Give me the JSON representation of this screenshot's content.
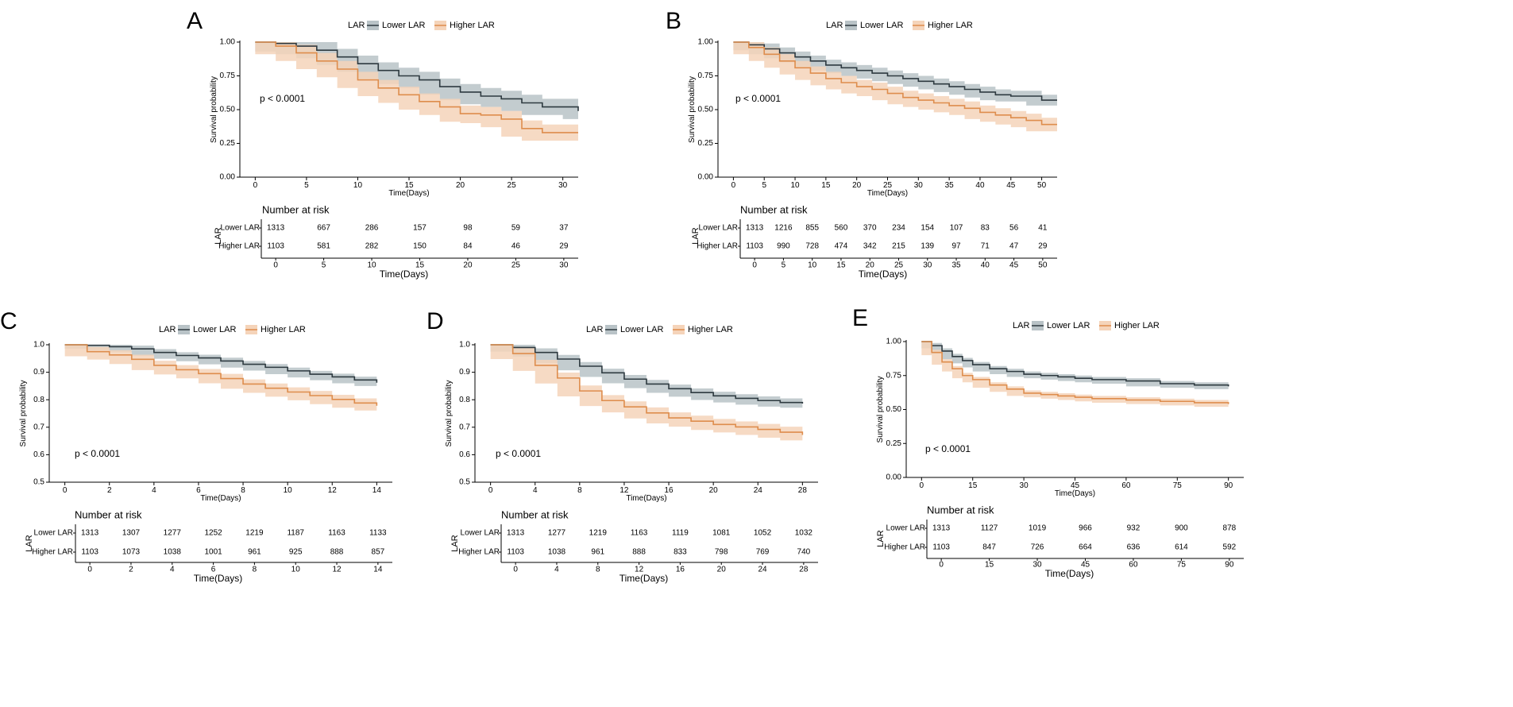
{
  "colors": {
    "lower": "#2e3a40",
    "lower_band": "#b9c3c7",
    "higher": "#de8d4d",
    "higher_band": "#f5d4ba",
    "axis": "#000000",
    "text": "#000000"
  },
  "chart_data": [
    {
      "type": "line",
      "panel_label": "A",
      "legend_title": "LAR",
      "legend": [
        "Lower LAR",
        "Higher LAR"
      ],
      "xlabel": "Time(Days)",
      "ylabel": "Survival probability",
      "xlim": [
        -1.5,
        31.5
      ],
      "ylim": [
        0,
        1
      ],
      "x_ticks": [
        0,
        5,
        10,
        15,
        20,
        25,
        30
      ],
      "y_ticks": [
        0,
        0.25,
        0.5,
        0.75,
        1
      ],
      "y_tick_labels": [
        "0.00",
        "0.25",
        "0.50",
        "0.75",
        "1.00"
      ],
      "p_value": "p < 0.0001",
      "series": [
        {
          "name": "Lower LAR",
          "x": [
            0,
            2,
            4,
            6,
            8,
            10,
            12,
            14,
            16,
            18,
            20,
            22,
            24,
            26,
            28,
            30,
            31.5
          ],
          "values": [
            1.0,
            0.99,
            0.97,
            0.94,
            0.89,
            0.84,
            0.79,
            0.75,
            0.72,
            0.67,
            0.63,
            0.6,
            0.58,
            0.55,
            0.52,
            0.52,
            0.49
          ],
          "band": 0.06
        },
        {
          "name": "Higher LAR",
          "x": [
            0,
            2,
            4,
            6,
            8,
            10,
            12,
            14,
            16,
            18,
            20,
            22,
            24,
            26,
            28,
            30,
            31.5
          ],
          "values": [
            1.0,
            0.97,
            0.92,
            0.86,
            0.8,
            0.72,
            0.66,
            0.61,
            0.56,
            0.52,
            0.47,
            0.46,
            0.43,
            0.36,
            0.33,
            0.33,
            0.33
          ],
          "band": 0.06
        }
      ],
      "risk_table": {
        "title": "Number at risk",
        "row_title": "LAR",
        "xlabel": "Time(Days)",
        "times": [
          0,
          5,
          10,
          15,
          20,
          25,
          30
        ],
        "rows": [
          {
            "label": "Lower LAR",
            "counts": [
              "1313",
              "667",
              "286",
              "157",
              "98",
              "59",
              "37"
            ]
          },
          {
            "label": "Higher LAR",
            "counts": [
              "1103",
              "581",
              "282",
              "150",
              "84",
              "46",
              "29"
            ]
          }
        ]
      }
    },
    {
      "type": "line",
      "panel_label": "B",
      "legend_title": "LAR",
      "legend": [
        "Lower LAR",
        "Higher LAR"
      ],
      "xlabel": "Time(Days)",
      "ylabel": "Survival probability",
      "xlim": [
        -2.5,
        52.5
      ],
      "ylim": [
        0,
        1
      ],
      "x_ticks": [
        0,
        5,
        10,
        15,
        20,
        25,
        30,
        35,
        40,
        45,
        50
      ],
      "y_ticks": [
        0,
        0.25,
        0.5,
        0.75,
        1
      ],
      "y_tick_labels": [
        "0.00",
        "0.25",
        "0.50",
        "0.75",
        "1.00"
      ],
      "p_value": "p < 0.0001",
      "series": [
        {
          "name": "Lower LAR",
          "x": [
            0,
            2.5,
            5,
            7.5,
            10,
            12.5,
            15,
            17.5,
            20,
            22.5,
            25,
            27.5,
            30,
            32.5,
            35,
            37.5,
            40,
            42.5,
            45,
            47.5,
            50,
            52.5
          ],
          "values": [
            1.0,
            0.98,
            0.95,
            0.92,
            0.89,
            0.86,
            0.83,
            0.81,
            0.79,
            0.77,
            0.75,
            0.73,
            0.71,
            0.69,
            0.67,
            0.65,
            0.63,
            0.61,
            0.6,
            0.6,
            0.57,
            0.57
          ],
          "band": 0.04
        },
        {
          "name": "Higher LAR",
          "x": [
            0,
            2.5,
            5,
            7.5,
            10,
            12.5,
            15,
            17.5,
            20,
            22.5,
            25,
            27.5,
            30,
            32.5,
            35,
            37.5,
            40,
            42.5,
            45,
            47.5,
            50,
            52.5
          ],
          "values": [
            1.0,
            0.96,
            0.91,
            0.86,
            0.81,
            0.77,
            0.73,
            0.7,
            0.67,
            0.65,
            0.62,
            0.59,
            0.57,
            0.55,
            0.53,
            0.51,
            0.48,
            0.46,
            0.44,
            0.42,
            0.39,
            0.39
          ],
          "band": 0.05
        }
      ],
      "risk_table": {
        "title": "Number at risk",
        "row_title": "LAR",
        "xlabel": "Time(Days)",
        "times": [
          0,
          5,
          10,
          15,
          20,
          25,
          30,
          35,
          40,
          45,
          50
        ],
        "rows": [
          {
            "label": "Lower LAR",
            "counts": [
              "1313",
              "1216",
              "855",
              "560",
              "370",
              "234",
              "154",
              "107",
              "83",
              "56",
              "41"
            ]
          },
          {
            "label": "Higher LAR",
            "counts": [
              "1103",
              "990",
              "728",
              "474",
              "342",
              "215",
              "139",
              "97",
              "71",
              "47",
              "29"
            ]
          }
        ]
      }
    },
    {
      "type": "line",
      "panel_label": "C",
      "legend_title": "LAR",
      "legend": [
        "Lower LAR",
        "Higher LAR"
      ],
      "xlabel": "Time(Days)",
      "ylabel": "Survival probability",
      "xlim": [
        -0.7,
        14.7
      ],
      "ylim": [
        0.5,
        1.0
      ],
      "x_ticks": [
        0,
        2,
        4,
        6,
        8,
        10,
        12,
        14
      ],
      "y_ticks": [
        0.5,
        0.6,
        0.7,
        0.8,
        0.9,
        1.0
      ],
      "y_tick_labels": [
        "0.5",
        "0.6",
        "0.7",
        "0.8",
        "0.9",
        "1.0"
      ],
      "p_value": "p < 0.0001",
      "series": [
        {
          "name": "Lower LAR",
          "x": [
            0,
            1,
            2,
            3,
            4,
            5,
            6,
            7,
            8,
            9,
            10,
            11,
            12,
            13,
            14
          ],
          "values": [
            1.0,
            0.998,
            0.993,
            0.985,
            0.972,
            0.961,
            0.952,
            0.941,
            0.929,
            0.918,
            0.905,
            0.893,
            0.883,
            0.872,
            0.862
          ],
          "band": 0.012
        },
        {
          "name": "Higher LAR",
          "x": [
            0,
            1,
            2,
            3,
            4,
            5,
            6,
            7,
            8,
            9,
            10,
            11,
            12,
            13,
            14
          ],
          "values": [
            1.0,
            0.975,
            0.963,
            0.947,
            0.925,
            0.909,
            0.895,
            0.877,
            0.857,
            0.842,
            0.828,
            0.815,
            0.801,
            0.788,
            0.778
          ],
          "band": 0.017
        }
      ],
      "risk_table": {
        "title": "Number at risk",
        "row_title": "LAR",
        "xlabel": "Time(Days)",
        "times": [
          0,
          2,
          4,
          6,
          8,
          10,
          12,
          14
        ],
        "rows": [
          {
            "label": "Lower LAR",
            "counts": [
              "1313",
              "1307",
              "1277",
              "1252",
              "1219",
              "1187",
              "1163",
              "1133"
            ]
          },
          {
            "label": "Higher LAR",
            "counts": [
              "1103",
              "1073",
              "1038",
              "1001",
              "961",
              "925",
              "888",
              "857"
            ]
          }
        ]
      }
    },
    {
      "type": "line",
      "panel_label": "D",
      "legend_title": "LAR",
      "legend": [
        "Lower LAR",
        "Higher LAR"
      ],
      "xlabel": "Time(Days)",
      "ylabel": "Survival probability",
      "xlim": [
        -1.4,
        29.4
      ],
      "ylim": [
        0.5,
        1.0
      ],
      "x_ticks": [
        0,
        4,
        8,
        12,
        16,
        20,
        24,
        28
      ],
      "y_ticks": [
        0.5,
        0.6,
        0.7,
        0.8,
        0.9,
        1.0
      ],
      "y_tick_labels": [
        "0.5",
        "0.6",
        "0.7",
        "0.8",
        "0.9",
        "1.0"
      ],
      "p_value": "p < 0.0001",
      "series": [
        {
          "name": "Lower LAR",
          "x": [
            0,
            2,
            4,
            6,
            8,
            10,
            12,
            14,
            16,
            18,
            20,
            22,
            24,
            26,
            28
          ],
          "values": [
            1.0,
            0.99,
            0.972,
            0.948,
            0.922,
            0.898,
            0.875,
            0.857,
            0.84,
            0.826,
            0.814,
            0.805,
            0.797,
            0.79,
            0.786
          ],
          "band": 0.015
        },
        {
          "name": "Higher LAR",
          "x": [
            0,
            2,
            4,
            6,
            8,
            10,
            12,
            14,
            16,
            18,
            20,
            22,
            24,
            26,
            28
          ],
          "values": [
            1.0,
            0.968,
            0.925,
            0.879,
            0.832,
            0.797,
            0.774,
            0.752,
            0.734,
            0.722,
            0.71,
            0.701,
            0.692,
            0.682,
            0.672
          ],
          "band": 0.02
        }
      ],
      "risk_table": {
        "title": "Number at risk",
        "row_title": "LAR",
        "xlabel": "Time(Days)",
        "times": [
          0,
          4,
          8,
          12,
          16,
          20,
          24,
          28
        ],
        "rows": [
          {
            "label": "Lower LAR",
            "counts": [
              "1313",
              "1277",
              "1219",
              "1163",
              "1119",
              "1081",
              "1052",
              "1032"
            ]
          },
          {
            "label": "Higher LAR",
            "counts": [
              "1103",
              "1038",
              "961",
              "888",
              "833",
              "798",
              "769",
              "740"
            ]
          }
        ]
      }
    },
    {
      "type": "line",
      "panel_label": "E",
      "legend_title": "LAR",
      "legend": [
        "Lower LAR",
        "Higher LAR"
      ],
      "xlabel": "Time(Days)",
      "ylabel": "Survival probability",
      "xlim": [
        -4.5,
        94.5
      ],
      "ylim": [
        0,
        1
      ],
      "x_ticks": [
        0,
        15,
        30,
        45,
        60,
        75,
        90
      ],
      "y_ticks": [
        0,
        0.25,
        0.5,
        0.75,
        1
      ],
      "y_tick_labels": [
        "0.00",
        "0.25",
        "0.50",
        "0.75",
        "1.00"
      ],
      "p_value": "p < 0.0001",
      "series": [
        {
          "name": "Lower LAR",
          "x": [
            0,
            3,
            6,
            9,
            12,
            15,
            20,
            25,
            30,
            35,
            40,
            45,
            50,
            60,
            70,
            80,
            90
          ],
          "values": [
            1.0,
            0.97,
            0.93,
            0.89,
            0.86,
            0.83,
            0.8,
            0.78,
            0.76,
            0.75,
            0.74,
            0.73,
            0.72,
            0.71,
            0.69,
            0.68,
            0.67
          ],
          "band": 0.02
        },
        {
          "name": "Higher LAR",
          "x": [
            0,
            3,
            6,
            9,
            12,
            15,
            20,
            25,
            30,
            35,
            40,
            45,
            50,
            60,
            70,
            80,
            90
          ],
          "values": [
            1.0,
            0.92,
            0.85,
            0.8,
            0.75,
            0.72,
            0.68,
            0.65,
            0.62,
            0.61,
            0.6,
            0.59,
            0.58,
            0.57,
            0.56,
            0.55,
            0.54
          ],
          "band": 0.02
        }
      ],
      "risk_table": {
        "title": "Number at risk",
        "row_title": "LAR",
        "xlabel": "Time(Days)",
        "times": [
          0,
          15,
          30,
          45,
          60,
          75,
          90
        ],
        "rows": [
          {
            "label": "Lower LAR",
            "counts": [
              "1313",
              "1127",
              "1019",
              "966",
              "932",
              "900",
              "878"
            ]
          },
          {
            "label": "Higher LAR",
            "counts": [
              "1103",
              "847",
              "726",
              "664",
              "636",
              "614",
              "592"
            ]
          }
        ]
      }
    }
  ]
}
